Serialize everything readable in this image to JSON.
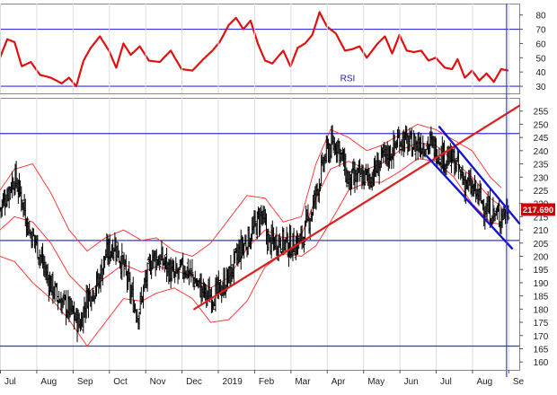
{
  "colors": {
    "price_bars": "#000000",
    "bands": "#ff2a2a",
    "rsi_line": "#e01010",
    "trend_up": "#dd1f1f",
    "trend_down": "#1515d0",
    "levels": "#3333dd",
    "cursor": "#3a3aee",
    "price_box": "#cc0000",
    "grid": "#dcdcdc"
  },
  "chart_data": [
    {
      "type": "line",
      "panel": "rsi",
      "series_label": "RSI",
      "ylim": [
        25,
        88
      ],
      "yticks": [
        30,
        40,
        50,
        60,
        70,
        80
      ],
      "levels": [
        70,
        30
      ],
      "months": [
        "Jul",
        "Aug",
        "Sep",
        "Oct",
        "Nov",
        "Dec",
        "2019",
        "Feb",
        "Mar",
        "Apr",
        "May",
        "Jun",
        "Jul",
        "Aug",
        "Se"
      ],
      "x_range": [
        0,
        14.3
      ],
      "values": [
        [
          0.0,
          50
        ],
        [
          0.2,
          63
        ],
        [
          0.4,
          61
        ],
        [
          0.6,
          44
        ],
        [
          0.85,
          47
        ],
        [
          1.1,
          38
        ],
        [
          1.4,
          36
        ],
        [
          1.7,
          32
        ],
        [
          1.9,
          36
        ],
        [
          2.1,
          30
        ],
        [
          2.3,
          48
        ],
        [
          2.5,
          57
        ],
        [
          2.75,
          65
        ],
        [
          3.0,
          55
        ],
        [
          3.2,
          43
        ],
        [
          3.4,
          60
        ],
        [
          3.6,
          52
        ],
        [
          3.85,
          58
        ],
        [
          4.1,
          48
        ],
        [
          4.4,
          47
        ],
        [
          4.7,
          55
        ],
        [
          5.0,
          42
        ],
        [
          5.3,
          41
        ],
        [
          5.6,
          49
        ],
        [
          5.85,
          55
        ],
        [
          6.05,
          61
        ],
        [
          6.3,
          73
        ],
        [
          6.5,
          78
        ],
        [
          6.7,
          70
        ],
        [
          6.9,
          76
        ],
        [
          7.1,
          60
        ],
        [
          7.3,
          48
        ],
        [
          7.5,
          46
        ],
        [
          7.8,
          55
        ],
        [
          8.0,
          44
        ],
        [
          8.2,
          57
        ],
        [
          8.4,
          60
        ],
        [
          8.6,
          66
        ],
        [
          8.8,
          82
        ],
        [
          9.0,
          72
        ],
        [
          9.25,
          67
        ],
        [
          9.5,
          55
        ],
        [
          9.7,
          56
        ],
        [
          9.9,
          58
        ],
        [
          10.1,
          50
        ],
        [
          10.4,
          60
        ],
        [
          10.6,
          65
        ],
        [
          10.8,
          53
        ],
        [
          11.0,
          66
        ],
        [
          11.2,
          55
        ],
        [
          11.4,
          54
        ],
        [
          11.6,
          55
        ],
        [
          11.8,
          48
        ],
        [
          12.0,
          50
        ],
        [
          12.25,
          43
        ],
        [
          12.45,
          42
        ],
        [
          12.6,
          49
        ],
        [
          12.8,
          36
        ],
        [
          13.0,
          41
        ],
        [
          13.2,
          34
        ],
        [
          13.4,
          39
        ],
        [
          13.6,
          33
        ],
        [
          13.8,
          42
        ],
        [
          14.0,
          41
        ]
      ]
    },
    {
      "type": "candlestick",
      "panel": "price",
      "ylim": [
        157,
        260
      ],
      "yticks": [
        160,
        165,
        170,
        175,
        180,
        185,
        190,
        195,
        200,
        205,
        210,
        215,
        220,
        225,
        230,
        235,
        240,
        245,
        250,
        255
      ],
      "months": [
        "Jul",
        "Aug",
        "Sep",
        "Oct",
        "Nov",
        "Dec",
        "2019",
        "Feb",
        "Mar",
        "Apr",
        "May",
        "Jun",
        "Jul",
        "Aug",
        "Se"
      ],
      "x_range": [
        0,
        14.3
      ],
      "last_price_label": "217.690",
      "horizontal_levels": [
        246.5,
        206,
        166
      ],
      "close_path": [
        [
          0.0,
          218
        ],
        [
          0.2,
          224
        ],
        [
          0.4,
          230
        ],
        [
          0.6,
          222
        ],
        [
          0.8,
          210
        ],
        [
          1.0,
          205
        ],
        [
          1.3,
          192
        ],
        [
          1.6,
          184
        ],
        [
          1.9,
          180
        ],
        [
          2.2,
          174
        ],
        [
          2.4,
          185
        ],
        [
          2.7,
          190
        ],
        [
          2.9,
          200
        ],
        [
          3.15,
          205
        ],
        [
          3.4,
          196
        ],
        [
          3.6,
          186
        ],
        [
          3.8,
          178
        ],
        [
          4.0,
          190
        ],
        [
          4.2,
          200
        ],
        [
          4.5,
          198
        ],
        [
          4.8,
          192
        ],
        [
          5.1,
          196
        ],
        [
          5.4,
          190
        ],
        [
          5.7,
          185
        ],
        [
          6.0,
          186
        ],
        [
          6.3,
          192
        ],
        [
          6.6,
          202
        ],
        [
          6.9,
          208
        ],
        [
          7.2,
          216
        ],
        [
          7.4,
          205
        ],
        [
          7.7,
          206
        ],
        [
          8.0,
          204
        ],
        [
          8.3,
          206
        ],
        [
          8.6,
          218
        ],
        [
          9.0,
          240
        ],
        [
          9.3,
          243
        ],
        [
          9.6,
          228
        ],
        [
          9.9,
          230
        ],
        [
          10.2,
          230
        ],
        [
          10.5,
          236
        ],
        [
          10.8,
          240
        ],
        [
          11.0,
          245
        ],
        [
          11.3,
          242
        ],
        [
          11.6,
          243
        ],
        [
          11.9,
          242
        ],
        [
          12.2,
          238
        ],
        [
          12.5,
          236
        ],
        [
          12.8,
          228
        ],
        [
          13.1,
          224
        ],
        [
          13.4,
          218
        ],
        [
          13.7,
          215
        ],
        [
          14.0,
          218
        ]
      ],
      "bollinger": {
        "upper": [
          [
            0.0,
            225
          ],
          [
            0.4,
            233
          ],
          [
            0.9,
            235
          ],
          [
            1.4,
            224
          ],
          [
            1.9,
            210
          ],
          [
            2.4,
            202
          ],
          [
            2.9,
            207
          ],
          [
            3.4,
            210
          ],
          [
            3.9,
            206
          ],
          [
            4.3,
            207
          ],
          [
            4.8,
            202
          ],
          [
            5.3,
            200
          ],
          [
            5.8,
            205
          ],
          [
            6.3,
            214
          ],
          [
            6.8,
            223
          ],
          [
            7.3,
            222
          ],
          [
            7.8,
            213
          ],
          [
            8.3,
            215
          ],
          [
            8.7,
            235
          ],
          [
            9.1,
            248
          ],
          [
            9.6,
            245
          ],
          [
            10.1,
            240
          ],
          [
            10.5,
            242
          ],
          [
            11.0,
            246
          ],
          [
            11.5,
            250
          ],
          [
            12.0,
            248
          ],
          [
            12.5,
            244
          ],
          [
            13.0,
            240
          ],
          [
            13.5,
            230
          ],
          [
            13.8,
            226
          ]
        ],
        "middle": [
          [
            0.0,
            210
          ],
          [
            0.4,
            215
          ],
          [
            0.9,
            213
          ],
          [
            1.4,
            205
          ],
          [
            1.9,
            193
          ],
          [
            2.4,
            186
          ],
          [
            2.9,
            192
          ],
          [
            3.4,
            197
          ],
          [
            3.9,
            194
          ],
          [
            4.3,
            196
          ],
          [
            4.8,
            195
          ],
          [
            5.3,
            192
          ],
          [
            5.8,
            188
          ],
          [
            6.3,
            192
          ],
          [
            6.8,
            203
          ],
          [
            7.3,
            210
          ],
          [
            7.8,
            207
          ],
          [
            8.3,
            208
          ],
          [
            8.7,
            222
          ],
          [
            9.1,
            233
          ],
          [
            9.6,
            236
          ],
          [
            10.1,
            233
          ],
          [
            10.5,
            235
          ],
          [
            11.0,
            240
          ],
          [
            11.5,
            243
          ],
          [
            12.0,
            242
          ],
          [
            12.5,
            236
          ],
          [
            13.0,
            230
          ],
          [
            13.5,
            222
          ],
          [
            13.8,
            219
          ]
        ],
        "lower": [
          [
            0.0,
            200
          ],
          [
            0.4,
            198
          ],
          [
            0.9,
            190
          ],
          [
            1.4,
            184
          ],
          [
            1.9,
            176
          ],
          [
            2.4,
            166
          ],
          [
            2.9,
            175
          ],
          [
            3.4,
            184
          ],
          [
            3.9,
            183
          ],
          [
            4.3,
            186
          ],
          [
            4.8,
            188
          ],
          [
            5.3,
            184
          ],
          [
            5.8,
            175
          ],
          [
            6.3,
            176
          ],
          [
            6.8,
            183
          ],
          [
            7.3,
            196
          ],
          [
            7.8,
            201
          ],
          [
            8.3,
            200
          ],
          [
            8.7,
            204
          ],
          [
            9.1,
            213
          ],
          [
            9.6,
            225
          ],
          [
            10.1,
            228
          ],
          [
            10.5,
            228
          ],
          [
            11.0,
            232
          ],
          [
            11.5,
            237
          ],
          [
            12.0,
            236
          ],
          [
            12.5,
            230
          ],
          [
            13.0,
            220
          ],
          [
            13.5,
            213
          ],
          [
            13.8,
            212
          ]
        ]
      },
      "trend_lines": [
        {
          "role": "uptrend",
          "from": [
            5.35,
            180
          ],
          "to": [
            14.3,
            257
          ]
        },
        {
          "role": "downtrend-upper",
          "from": [
            12.1,
            249
          ],
          "to": [
            14.3,
            212.5
          ]
        },
        {
          "role": "downtrend-lower",
          "from": [
            11.75,
            238
          ],
          "to": [
            14.1,
            203
          ]
        }
      ],
      "cursor_x": 13.95
    }
  ]
}
